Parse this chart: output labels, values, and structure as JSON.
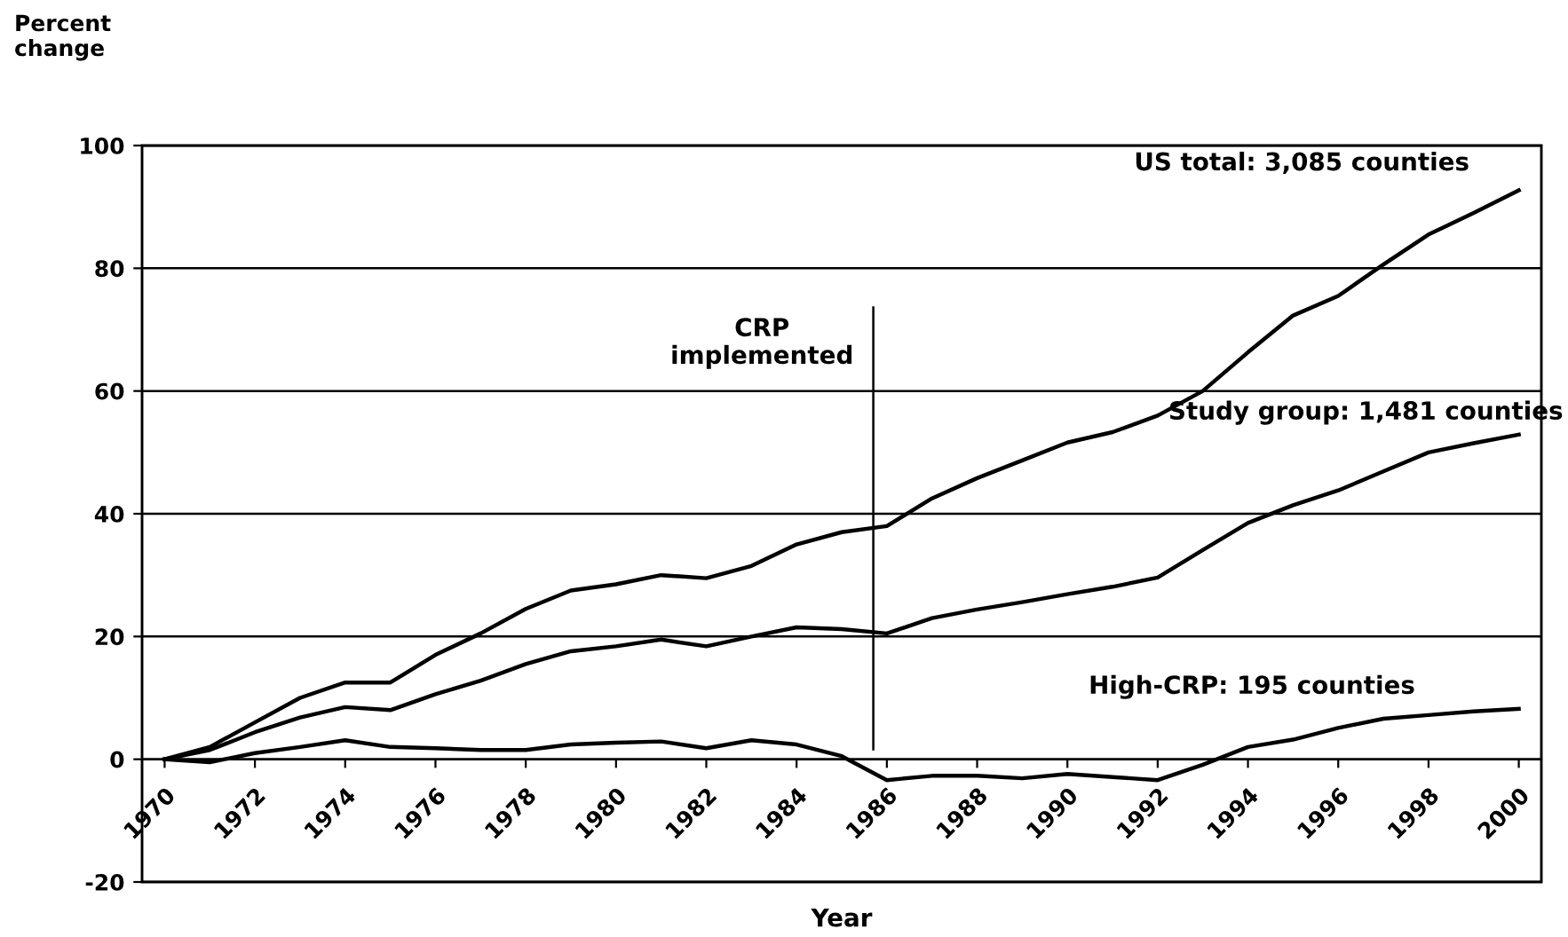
{
  "chart_data": {
    "type": "line",
    "ylabel": "Percent change",
    "xlabel": "Year",
    "x": [
      1970,
      1971,
      1972,
      1973,
      1974,
      1975,
      1976,
      1977,
      1978,
      1979,
      1980,
      1981,
      1982,
      1983,
      1984,
      1985,
      1986,
      1987,
      1988,
      1989,
      1990,
      1991,
      1992,
      1993,
      1994,
      1995,
      1996,
      1997,
      1998,
      1999,
      2000
    ],
    "series": [
      {
        "name": "US total: 3,085 counties",
        "color": "#000000",
        "values": [
          0,
          2,
          6,
          10,
          12.5,
          12.5,
          17,
          20.5,
          24.5,
          27.5,
          28.5,
          30,
          29.5,
          31.5,
          35,
          37,
          38,
          42.5,
          45.8,
          48.7,
          51.6,
          53.3,
          56,
          60,
          66.3,
          72.3,
          75.5,
          80.6,
          85.5,
          89,
          92.7
        ]
      },
      {
        "name": "Study group: 1,481 counties",
        "color": "#000000",
        "values": [
          0,
          1.5,
          4.4,
          6.8,
          8.5,
          8,
          10.6,
          12.8,
          15.5,
          17.6,
          18.4,
          19.5,
          18.4,
          20,
          21.5,
          21.2,
          20.5,
          23,
          24.4,
          25.6,
          26.9,
          28.1,
          29.6,
          34.1,
          38.5,
          41.4,
          43.8,
          46.9,
          50,
          51.5,
          52.9
        ]
      },
      {
        "name": "High-CRP: 195 counties",
        "color": "#000000",
        "values": [
          0,
          -0.5,
          1,
          2,
          3.1,
          2,
          1.8,
          1.5,
          1.5,
          2.4,
          2.7,
          2.9,
          1.8,
          3.1,
          2.4,
          0.5,
          -3.4,
          -2.7,
          -2.7,
          -3.1,
          -2.4,
          -2.9,
          -3.4,
          -0.9,
          2,
          3.2,
          5.1,
          6.6,
          7.2,
          7.8,
          8.2
        ]
      }
    ],
    "xlim": [
      1969.5,
      2000.5
    ],
    "xticks": [
      1970,
      1972,
      1974,
      1976,
      1978,
      1980,
      1982,
      1984,
      1986,
      1988,
      1990,
      1992,
      1994,
      1996,
      1998,
      2000
    ],
    "ylim": [
      -20,
      100
    ],
    "yticks": [
      -20,
      0,
      20,
      40,
      60,
      80,
      100
    ],
    "ref_lines": [
      {
        "axis": "x",
        "value": 1985.7,
        "label": "CRP\nimplemented",
        "color": "#000000"
      }
    ],
    "grid": "y",
    "legend": false,
    "marker": "none",
    "line_style": "solid"
  }
}
